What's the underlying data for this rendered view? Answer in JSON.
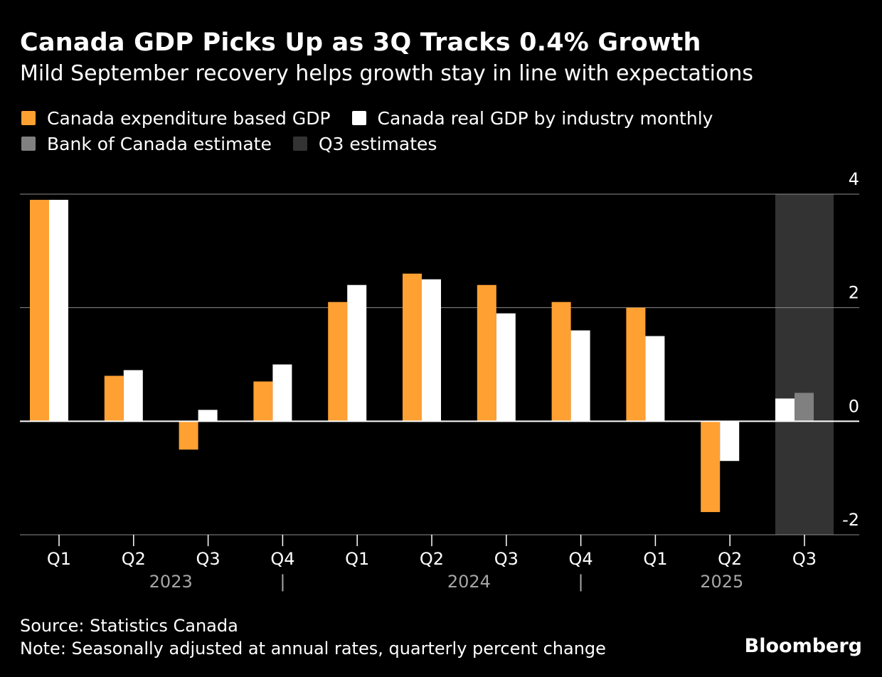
{
  "header": {
    "title": "Canada GDP Picks Up as 3Q Tracks 0.4% Growth",
    "subtitle": "Mild September recovery helps growth stay in line with expectations"
  },
  "legend": [
    {
      "label": "Canada expenditure based GDP",
      "color": "#FFA032"
    },
    {
      "label": "Canada real GDP by industry monthly",
      "color": "#FFFFFF"
    },
    {
      "label": "Bank of Canada estimate",
      "color": "#808080"
    },
    {
      "label": "Q3 estimates",
      "color": "#333333"
    }
  ],
  "chart_data": {
    "type": "bar",
    "title": "Canada GDP Picks Up as 3Q Tracks 0.4% Growth",
    "xlabel": "",
    "ylabel": "",
    "ylim": [
      -2,
      4
    ],
    "yticks": [
      4,
      2,
      0,
      -2
    ],
    "grid": true,
    "categories": [
      "Q1",
      "Q2",
      "Q3",
      "Q4",
      "Q1",
      "Q2",
      "Q3",
      "Q4",
      "Q1",
      "Q2",
      "Q3"
    ],
    "year_labels": [
      {
        "label": "2023",
        "start": 0,
        "end": 3
      },
      {
        "label": "2024",
        "start": 4,
        "end": 7
      },
      {
        "label": "2025",
        "start": 8,
        "end": 10
      }
    ],
    "year_separator": "|",
    "series": [
      {
        "name": "Canada expenditure based GDP",
        "color": "#FFA032",
        "values": [
          3.9,
          0.8,
          -0.5,
          0.7,
          2.1,
          2.6,
          2.4,
          2.1,
          2.0,
          -1.6,
          null
        ]
      },
      {
        "name": "Canada real GDP by industry monthly",
        "color": "#FFFFFF",
        "values": [
          3.9,
          0.9,
          0.2,
          1.0,
          2.4,
          2.5,
          1.9,
          1.6,
          1.5,
          -0.7,
          0.4
        ]
      },
      {
        "name": "Bank of Canada estimate",
        "color": "#808080",
        "values": [
          null,
          null,
          null,
          null,
          null,
          null,
          null,
          null,
          null,
          null,
          0.5
        ]
      }
    ],
    "highlight": {
      "label": "Q3 estimates",
      "category_index": 10,
      "color": "#333333"
    },
    "axis_text_color": "#FFFFFF",
    "year_text_color": "#A6A6A6",
    "grid_color": "#8C8C8C"
  },
  "footer": {
    "source": "Source: Statistics Canada",
    "note": "Note: Seasonally adjusted at annual rates, quarterly percent change",
    "brand": "Bloomberg"
  }
}
